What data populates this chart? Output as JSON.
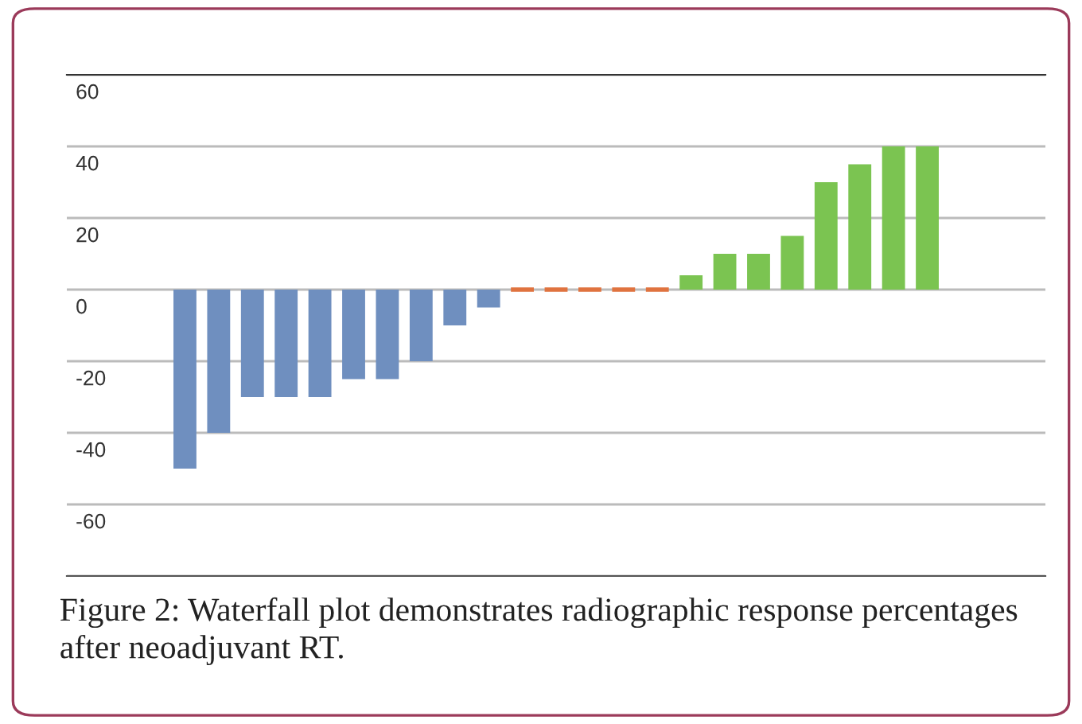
{
  "chart_data": {
    "type": "bar",
    "categories": [
      null,
      null,
      null,
      null,
      null,
      null,
      null,
      null,
      null,
      null,
      null,
      null,
      null,
      null,
      null,
      null,
      null,
      null,
      null,
      null,
      null,
      null,
      null,
      null,
      null,
      null,
      null,
      null,
      null
    ],
    "values": [
      null,
      null,
      null,
      -50,
      -40,
      -30,
      -30,
      -30,
      -25,
      -25,
      -20,
      -10,
      -5,
      0,
      0,
      0,
      0,
      0,
      4,
      10,
      10,
      15,
      30,
      35,
      40,
      40,
      null,
      null,
      null
    ],
    "colors": [
      "#6f8fbf",
      "#6f8fbf",
      "#6f8fbf",
      "#6f8fbf",
      "#6f8fbf",
      "#6f8fbf",
      "#6f8fbf",
      "#6f8fbf",
      "#6f8fbf",
      "#6f8fbf",
      "#6f8fbf",
      "#6f8fbf",
      "#6f8fbf",
      "#e0733f",
      "#e0733f",
      "#e0733f",
      "#e0733f",
      "#e0733f",
      "#7bc451",
      "#7bc451",
      "#7bc451",
      "#7bc451",
      "#7bc451",
      "#7bc451",
      "#7bc451",
      "#7bc451",
      "#7bc451",
      "#7bc451",
      "#7bc451"
    ],
    "ylim": [
      -80,
      60
    ],
    "yticks": [
      {
        "value": -80,
        "label": null
      },
      -60,
      -40,
      -20,
      0,
      20,
      40,
      60
    ],
    "grid": "y",
    "tick_labels": "y",
    "annotations": [
      "Figure 2: Waterfall plot demonstrates radiographic response percentages after neoadjuvant RT."
    ]
  }
}
